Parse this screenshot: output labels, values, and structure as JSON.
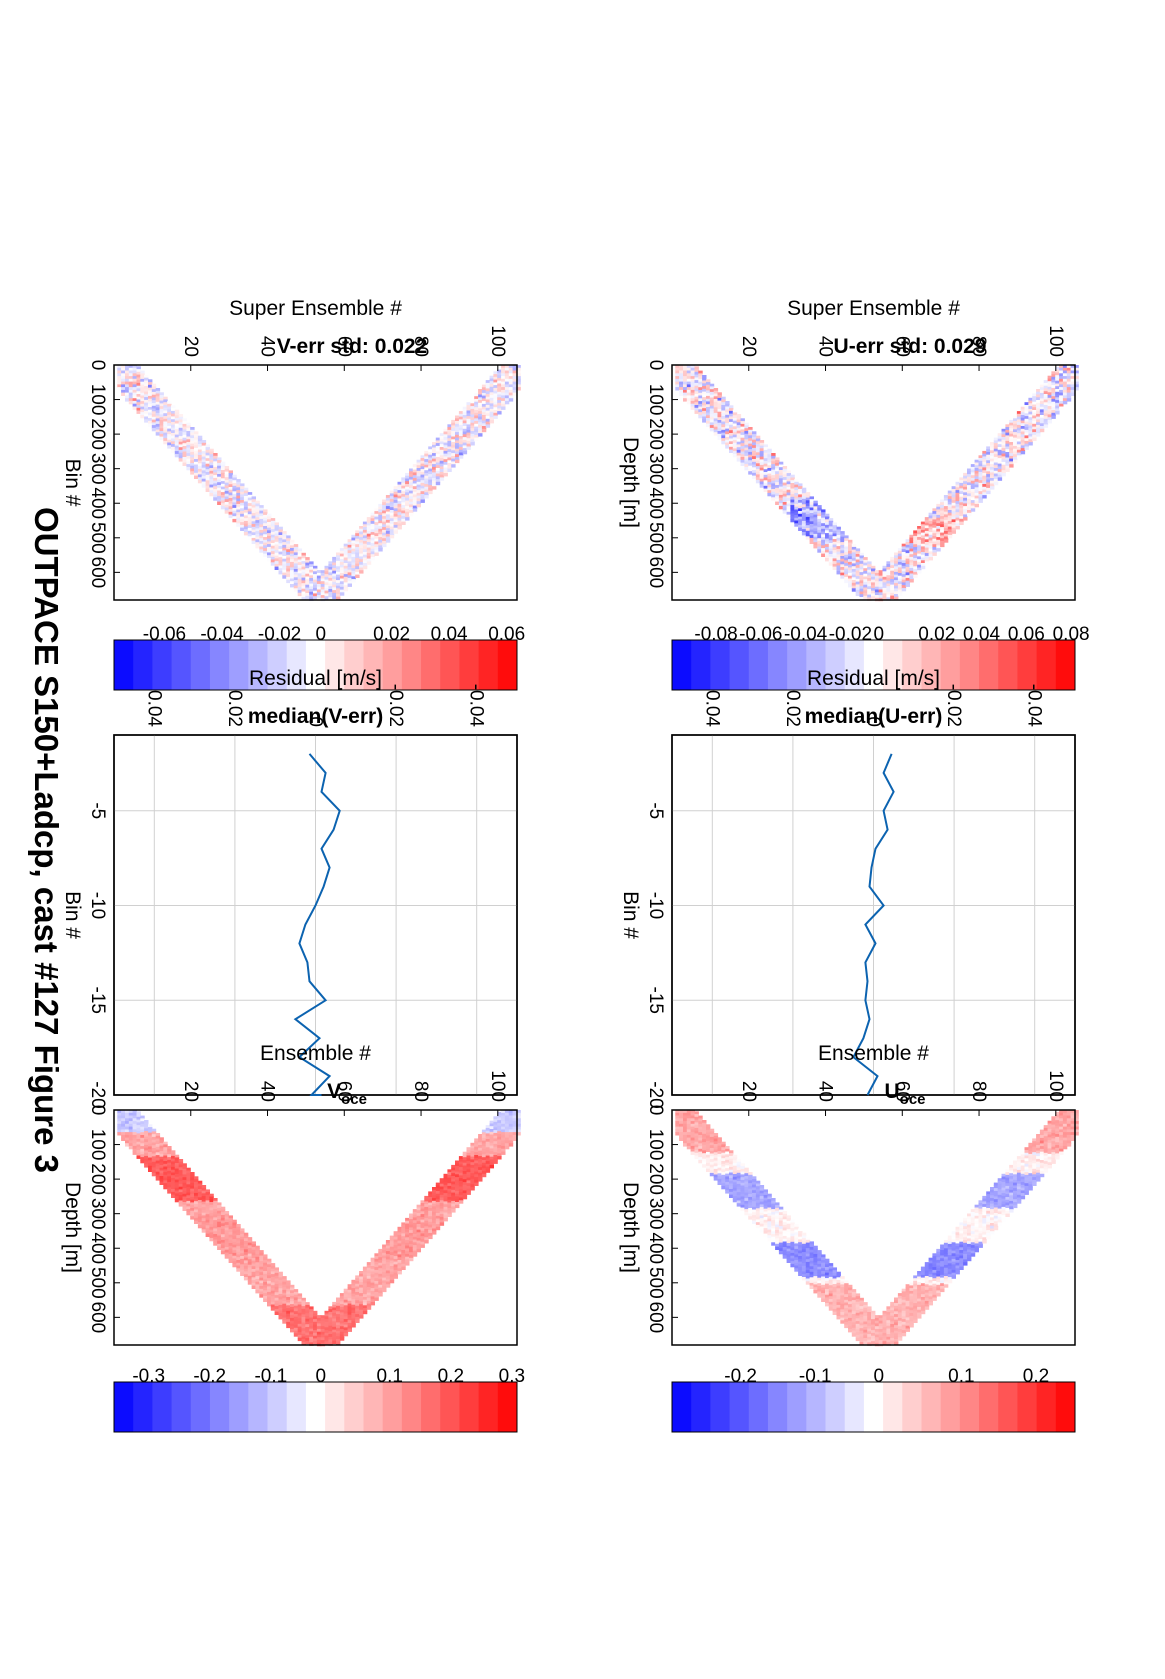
{
  "figure_title": "OUTPACE S150+Ladcp, cast #127  Figure 3",
  "chart_data": [
    {
      "type": "heatmap",
      "title": "U-err std: 0.029",
      "xlabel": "Super Ensemble #",
      "ylabel": "Depth [m]",
      "xticks": [
        20,
        40,
        60,
        80,
        100
      ],
      "yticks": [
        0,
        100,
        200,
        300,
        400,
        500,
        600
      ],
      "xlim": [
        0,
        105
      ],
      "ylim": [
        0,
        680
      ],
      "pattern": "V-shaped profile (downcast then upcast), turning point ~665 m near ensemble 53",
      "colorbar": {
        "ticks": [
          0.08,
          0.06,
          0.04,
          0.02,
          0,
          -0.02,
          -0.04,
          -0.06,
          -0.08
        ],
        "range": [
          -0.09,
          0.09
        ],
        "colormap": "red-white-blue"
      }
    },
    {
      "type": "line",
      "title": "median(U-err)",
      "xlabel": "Residual [m/s]",
      "ylabel": "Bin #",
      "xticks": [
        -0.04,
        -0.02,
        0,
        0.02,
        0.04
      ],
      "yticks": [
        -5,
        -10,
        -15,
        -20
      ],
      "xlim": [
        -0.05,
        0.05
      ],
      "ylim": [
        -20,
        -1
      ],
      "x": [
        -0.0045,
        -0.0025,
        -0.005,
        -0.0025,
        -0.0035,
        -0.0005,
        0.0005,
        0.001,
        -0.0025,
        0.002,
        -0.0005,
        0.002,
        0.0015,
        0.002,
        0.001,
        0.0025,
        0.005,
        -0.001,
        0.0015
      ],
      "y": [
        -2,
        -3,
        -4,
        -5,
        -6,
        -7,
        -8,
        -9,
        -10,
        -11,
        -12,
        -13,
        -14,
        -15,
        -16,
        -17,
        -18,
        -19,
        -20
      ]
    },
    {
      "type": "heatmap",
      "title": "Uoce",
      "xlabel": "Ensemble #",
      "ylabel": "Depth [m]",
      "xticks": [
        20,
        40,
        60,
        80,
        100
      ],
      "yticks": [
        0,
        100,
        200,
        300,
        400,
        500,
        600
      ],
      "xlim": [
        0,
        105
      ],
      "ylim": [
        0,
        680
      ],
      "pattern": "V-shaped profile; positive (red) near surface and at depth, negative (blue) at ~200-250 m and ~450 m",
      "colorbar": {
        "ticks": [
          0.2,
          0.1,
          0,
          -0.1,
          -0.2
        ],
        "range": [
          -0.27,
          0.27
        ],
        "colormap": "red-white-blue"
      }
    },
    {
      "type": "heatmap",
      "title": "V-err std: 0.022",
      "xlabel": "Super Ensemble #",
      "ylabel": "Bin #",
      "xticks": [
        20,
        40,
        60,
        80,
        100
      ],
      "yticks": [
        0,
        100,
        200,
        300,
        400,
        500,
        600
      ],
      "xlim": [
        0,
        105
      ],
      "ylim": [
        0,
        680
      ],
      "pattern": "V-shaped profile, noisy red/blue speckle",
      "colorbar": {
        "ticks": [
          0.06,
          0.04,
          0.02,
          0,
          -0.02,
          -0.04,
          -0.06
        ],
        "range": [
          -0.07,
          0.07
        ],
        "colormap": "red-white-blue"
      }
    },
    {
      "type": "line",
      "title": "median(V-err)",
      "xlabel": "Residual [m/s]",
      "ylabel": "Bin #",
      "xticks": [
        -0.04,
        -0.02,
        0,
        0.02,
        0.04
      ],
      "yticks": [
        -5,
        -10,
        -15,
        -20
      ],
      "xlim": [
        -0.05,
        0.05
      ],
      "ylim": [
        -20,
        -1
      ],
      "x": [
        0.0015,
        -0.0025,
        -0.0015,
        -0.006,
        -0.0045,
        -0.0015,
        -0.0035,
        -0.002,
        0,
        0.0025,
        0.004,
        0.002,
        0.0015,
        -0.0025,
        0.005,
        -0.001,
        0.004,
        -0.0035,
        0.001,
        -0.0015
      ],
      "y": [
        -2,
        -3,
        -4,
        -5,
        -6,
        -7,
        -8,
        -9,
        -10,
        -11,
        -12,
        -13,
        -14,
        -15,
        -16,
        -17,
        -18,
        -19,
        -20,
        -20
      ]
    },
    {
      "type": "heatmap",
      "title": "Voce",
      "xlabel": "Ensemble #",
      "ylabel": "Depth [m]",
      "xticks": [
        20,
        40,
        60,
        80,
        100
      ],
      "yticks": [
        0,
        100,
        200,
        300,
        400,
        500,
        600
      ],
      "xlim": [
        0,
        105
      ],
      "ylim": [
        0,
        680
      ],
      "pattern": "V-shaped profile, predominantly positive (red), strongest at ~150-250 m and ~600 m",
      "colorbar": {
        "ticks": [
          0.3,
          0.2,
          0.1,
          0,
          -0.1,
          -0.2,
          -0.3
        ],
        "range": [
          -0.33,
          0.33
        ],
        "colormap": "red-white-blue"
      }
    }
  ]
}
